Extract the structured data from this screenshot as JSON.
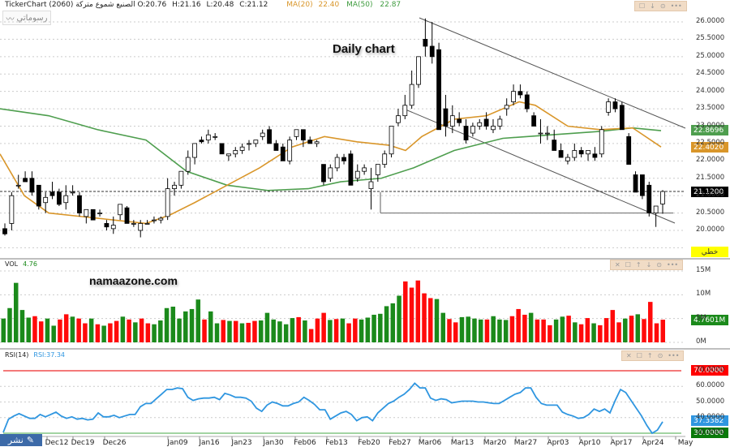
{
  "header": {
    "app": "TickerChart",
    "symbol_ar": "الصنيع شموع متركة",
    "code": "(2060)",
    "open": "O:20.76",
    "high": "H:21.16",
    "low": "L:20.48",
    "close": "C:21.12",
    "ma20_label": "MA(20)",
    "ma20_value": "22.40",
    "ma50_label": "MA(50)",
    "ma50_value": "22.87"
  },
  "drawing_button": "رسوماتي",
  "annotation": "Daily chart",
  "watermark": "namaazone.com",
  "share_button": "نشر",
  "colors": {
    "up": "#ffffff",
    "down": "#000000",
    "ma20": "#d9962a",
    "ma50": "#4e9e4e",
    "vol_up": "#1b8a1b",
    "vol_down": "#ff0a0a",
    "rsi": "#2f96e0",
    "rsi_over": "#ee2a2a",
    "rsi_under": "#0a8a0a"
  },
  "price_axis": {
    "ticks": [
      "26.0000",
      "25.5000",
      "25.0000",
      "24.5000",
      "24.0000",
      "23.5000",
      "23.0000",
      "22.5000",
      "22.0000",
      "21.5000",
      "21.0000",
      "20.5000",
      "20.0000"
    ],
    "tags": {
      "ma50": "22.8696",
      "ma20": "22.4020",
      "last": "21.1200",
      "bottom_btn": "خطي"
    }
  },
  "volume": {
    "title": "VOL",
    "value": "4.76",
    "ticks": [
      "15M",
      "10M",
      "5M",
      "0M"
    ],
    "last_tag": "4.7601M"
  },
  "rsi": {
    "title": "RSI(14)",
    "value": "RSI:37.34",
    "ticks": [
      "70.0000",
      "60.0000",
      "50.0000",
      "40.0000",
      "30.0000"
    ],
    "tags": {
      "over": "70.0000",
      "last": "37.3382",
      "under": "30.0000"
    }
  },
  "x_axis": [
    "Dec12",
    "Dec19",
    "Dec26",
    "Jan09",
    "Jan16",
    "Jan23",
    "Jan30",
    "Feb06",
    "Feb13",
    "Feb20",
    "Feb27",
    "Mar06",
    "Mar13",
    "Mar20",
    "Mar27",
    "Apr03",
    "Apr10",
    "Apr17",
    "Apr24",
    "May"
  ],
  "chart_data": {
    "type": "candlestick",
    "title": "Daily chart",
    "symbol": "2060",
    "ylim": [
      19.7,
      26.2
    ],
    "last": {
      "open": 20.76,
      "high": 21.16,
      "low": 20.48,
      "close": 21.12
    },
    "ma20_last": 22.4,
    "ma50_last": 22.87,
    "candles": [
      [
        20.05,
        20.2,
        19.85,
        19.9
      ],
      [
        20.2,
        21.1,
        20.0,
        21.0
      ],
      [
        21.3,
        21.6,
        21.2,
        21.3
      ],
      [
        21.5,
        21.7,
        21.5,
        21.4
      ],
      [
        21.5,
        21.7,
        21.0,
        21.1
      ],
      [
        21.3,
        21.3,
        20.6,
        20.7
      ],
      [
        20.8,
        21.1,
        20.5,
        20.95
      ],
      [
        21.1,
        21.4,
        20.9,
        21.0
      ],
      [
        21.1,
        21.2,
        20.7,
        20.75
      ],
      [
        20.8,
        21.3,
        20.6,
        21.0
      ],
      [
        21.1,
        21.3,
        21.0,
        21.1
      ],
      [
        21.0,
        21.1,
        20.4,
        20.5
      ],
      [
        20.4,
        20.6,
        20.2,
        20.6
      ],
      [
        20.6,
        20.6,
        20.3,
        20.3
      ],
      [
        20.5,
        20.6,
        20.4,
        20.5
      ],
      [
        20.2,
        20.3,
        20.0,
        20.1
      ],
      [
        20.05,
        20.4,
        19.9,
        20.15
      ],
      [
        20.45,
        20.7,
        20.3,
        20.75
      ],
      [
        20.65,
        20.7,
        20.2,
        20.2
      ],
      [
        20.2,
        20.3,
        20.1,
        20.2
      ],
      [
        20.0,
        20.3,
        19.8,
        20.2
      ],
      [
        20.2,
        20.3,
        20.2,
        20.2
      ],
      [
        20.3,
        20.4,
        20.2,
        20.3
      ],
      [
        20.3,
        20.4,
        20.2,
        20.35
      ],
      [
        20.4,
        21.5,
        20.3,
        21.2
      ],
      [
        21.2,
        21.4,
        21.0,
        21.3
      ],
      [
        21.3,
        21.7,
        21.2,
        21.7
      ],
      [
        21.7,
        22.3,
        21.6,
        22.1
      ],
      [
        22.1,
        22.5,
        21.9,
        22.5
      ],
      [
        22.6,
        22.7,
        22.5,
        22.55
      ],
      [
        22.6,
        22.9,
        22.5,
        22.75
      ],
      [
        22.7,
        22.8,
        22.6,
        22.7
      ],
      [
        22.5,
        22.5,
        22.2,
        22.2
      ],
      [
        22.15,
        22.2,
        22.0,
        22.2
      ],
      [
        22.2,
        22.4,
        22.1,
        22.3
      ],
      [
        22.3,
        22.5,
        22.2,
        22.4
      ],
      [
        22.5,
        22.6,
        22.3,
        22.5
      ],
      [
        22.5,
        22.6,
        22.4,
        22.6
      ],
      [
        22.7,
        22.9,
        22.6,
        22.8
      ],
      [
        22.9,
        23.0,
        22.8,
        22.5
      ],
      [
        22.5,
        22.6,
        22.4,
        22.3
      ],
      [
        22.4,
        22.5,
        22.1,
        22.0
      ],
      [
        22.0,
        22.7,
        21.9,
        22.6
      ],
      [
        22.7,
        22.9,
        22.6,
        22.9
      ],
      [
        22.9,
        22.9,
        22.4,
        22.6
      ],
      [
        22.6,
        22.7,
        22.5,
        22.5
      ],
      [
        22.5,
        22.6,
        22.4,
        22.55
      ],
      [
        21.9,
        21.9,
        21.3,
        21.4
      ],
      [
        21.5,
        21.9,
        21.4,
        21.8
      ],
      [
        21.8,
        22.2,
        21.7,
        22.1
      ],
      [
        22.1,
        22.2,
        21.9,
        22.0
      ],
      [
        22.2,
        22.3,
        21.3,
        21.3
      ],
      [
        21.5,
        21.9,
        21.4,
        21.7
      ],
      [
        21.7,
        21.9,
        21.6,
        21.8
      ],
      [
        21.2,
        21.8,
        20.6,
        21.4
      ],
      [
        21.6,
        21.9,
        21.4,
        21.9
      ],
      [
        21.9,
        22.3,
        21.8,
        22.2
      ],
      [
        22.2,
        22.8,
        22.1,
        23.0
      ],
      [
        23.1,
        23.5,
        23.0,
        23.3
      ],
      [
        23.3,
        23.9,
        23.2,
        23.6
      ],
      [
        23.6,
        24.6,
        23.5,
        24.2
      ],
      [
        24.2,
        24.8,
        24.1,
        25.0
      ],
      [
        25.5,
        26.1,
        25.0,
        25.3
      ],
      [
        25.3,
        26.0,
        24.8,
        25.0
      ],
      [
        25.2,
        25.4,
        22.9,
        22.9
      ],
      [
        23.5,
        23.9,
        22.7,
        23.0
      ],
      [
        23.0,
        23.6,
        22.8,
        23.3
      ],
      [
        23.2,
        23.4,
        23.0,
        23.1
      ],
      [
        23.0,
        23.2,
        22.5,
        22.6
      ],
      [
        22.8,
        23.1,
        22.7,
        23.0
      ],
      [
        23.0,
        23.2,
        22.9,
        23.1
      ],
      [
        23.2,
        23.4,
        22.9,
        23.0
      ],
      [
        22.9,
        23.2,
        22.8,
        23.0
      ],
      [
        23.0,
        23.3,
        22.9,
        23.2
      ],
      [
        23.5,
        23.8,
        23.3,
        23.6
      ],
      [
        23.7,
        24.2,
        23.6,
        24.0
      ],
      [
        24.0,
        24.2,
        23.8,
        23.9
      ],
      [
        23.9,
        24.0,
        23.4,
        23.5
      ],
      [
        23.3,
        23.4,
        23.0,
        23.0
      ],
      [
        22.8,
        23.2,
        22.5,
        22.8
      ],
      [
        22.8,
        23.0,
        22.6,
        22.8
      ],
      [
        22.6,
        22.9,
        22.3,
        22.3
      ],
      [
        22.3,
        22.5,
        22.1,
        22.1
      ],
      [
        22.0,
        22.2,
        21.9,
        22.1
      ],
      [
        22.1,
        22.5,
        22.0,
        22.3
      ],
      [
        22.3,
        22.4,
        22.1,
        22.2
      ],
      [
        22.2,
        22.3,
        22.0,
        22.3
      ],
      [
        22.2,
        22.4,
        22.0,
        22.1
      ],
      [
        22.2,
        23.0,
        22.1,
        22.9
      ],
      [
        23.4,
        23.8,
        23.3,
        23.7
      ],
      [
        23.7,
        23.8,
        23.4,
        23.5
      ],
      [
        23.6,
        23.7,
        22.9,
        22.9
      ],
      [
        22.7,
        22.8,
        22.0,
        21.9
      ],
      [
        21.6,
        21.7,
        21.2,
        21.1
      ],
      [
        21.6,
        21.6,
        20.9,
        21.0
      ],
      [
        21.3,
        21.4,
        20.4,
        20.5
      ],
      [
        20.5,
        20.7,
        20.1,
        20.7
      ],
      [
        20.76,
        21.16,
        20.48,
        21.12
      ]
    ],
    "ma20": [
      [
        0,
        22.2
      ],
      [
        30,
        21.0
      ],
      [
        60,
        20.5
      ],
      [
        100,
        20.4
      ],
      [
        140,
        20.3
      ],
      [
        180,
        20.2
      ],
      [
        210,
        20.45
      ],
      [
        240,
        20.8
      ],
      [
        280,
        21.3
      ],
      [
        320,
        21.8
      ],
      [
        360,
        22.4
      ],
      [
        400,
        22.7
      ],
      [
        440,
        22.55
      ],
      [
        480,
        22.45
      ],
      [
        500,
        22.3
      ],
      [
        520,
        22.7
      ],
      [
        540,
        22.95
      ],
      [
        560,
        23.2
      ],
      [
        600,
        23.3
      ],
      [
        640,
        23.7
      ],
      [
        660,
        23.6
      ],
      [
        700,
        23.0
      ],
      [
        740,
        22.9
      ],
      [
        780,
        22.95
      ],
      [
        815,
        22.4
      ]
    ],
    "ma50": [
      [
        0,
        23.5
      ],
      [
        60,
        23.3
      ],
      [
        120,
        22.9
      ],
      [
        180,
        22.6
      ],
      [
        230,
        21.7
      ],
      [
        280,
        21.3
      ],
      [
        330,
        21.15
      ],
      [
        380,
        21.2
      ],
      [
        420,
        21.4
      ],
      [
        470,
        21.5
      ],
      [
        510,
        21.8
      ],
      [
        560,
        22.3
      ],
      [
        620,
        22.65
      ],
      [
        680,
        22.75
      ],
      [
        740,
        22.85
      ],
      [
        780,
        22.95
      ],
      [
        815,
        22.87
      ]
    ],
    "volume": [
      5.0,
      7.2,
      12.5,
      6.8,
      5.2,
      5.5,
      4.4,
      5.0,
      3.5,
      4.8,
      5.9,
      5.4,
      5.0,
      4.0,
      5.0,
      3.8,
      3.5,
      4.0,
      4.5,
      5.4,
      4.8,
      4.2,
      5.0,
      4.0,
      3.8,
      4.6,
      7.2,
      7.5,
      5.0,
      6.5,
      7.0,
      9.0,
      4.8,
      6.5,
      4.0,
      4.7,
      4.5,
      4.5,
      4.0,
      4.1,
      4.5,
      4.6,
      6.2,
      4.8,
      4.4,
      3.8,
      5.1,
      5.3,
      4.6,
      2.8,
      5.0,
      6.2,
      4.7,
      4.9,
      5.0,
      4.0,
      5.0,
      4.8,
      5.2,
      5.8,
      6.0,
      7.6,
      8.2,
      9.8,
      12.8,
      11.5,
      13.0,
      10.3,
      9.3,
      9.1,
      6.2,
      4.9,
      4.2,
      5.3,
      5.4,
      5.0,
      4.8,
      4.8,
      5.5,
      4.8,
      4.7,
      5.5,
      7.0,
      5.8,
      6.2,
      4.8,
      4.8,
      3.6,
      4.8,
      5.4,
      5.6,
      4.2,
      3.8,
      5.1,
      4.0,
      3.6,
      5.1,
      6.8,
      4.2,
      5.0,
      5.6,
      5.9,
      4.9,
      8.5,
      4.0,
      4.76
    ],
    "volume_colors": "gggggrrggrrgrrgrgrrgrgrrggggggggrggrgrgrrggggggrgrrrgrgrrgggggggrrrrrggrrggggrgggrrrgrrrggrgrrgrrrrgrg",
    "rsi": [
      30.5,
      39,
      41,
      42.5,
      41,
      39.5,
      39.5,
      42,
      40.5,
      42,
      43.5,
      41,
      39.5,
      40.5,
      39,
      39.5,
      38.5,
      39,
      43,
      40.5,
      40.5,
      41.5,
      40,
      41,
      42,
      42,
      47,
      49,
      49,
      52,
      55,
      58,
      58,
      59,
      58.5,
      53,
      51,
      52,
      52.5,
      52.5,
      53,
      51.5,
      55.5,
      54.5,
      53,
      53,
      52.5,
      50.5,
      46,
      44,
      48,
      50,
      49,
      47.5,
      47.5,
      49,
      50,
      53,
      51,
      48.5,
      45,
      45,
      39,
      41,
      43,
      44,
      42,
      38,
      40,
      40.5,
      38,
      43,
      46,
      49,
      50.5,
      53,
      55,
      58,
      62,
      59,
      59,
      52.5,
      51,
      52,
      51.5,
      49.5,
      50,
      50.5,
      50.5,
      50.5,
      50,
      50,
      49.5,
      49,
      49,
      51,
      53,
      55,
      56,
      59,
      59,
      53,
      49,
      48,
      48,
      48,
      43.5,
      42,
      41,
      39.5,
      40,
      42,
      45.5,
      44,
      45.5,
      43,
      51,
      58,
      56,
      51,
      46,
      41,
      35,
      30,
      32,
      37.34
    ]
  }
}
